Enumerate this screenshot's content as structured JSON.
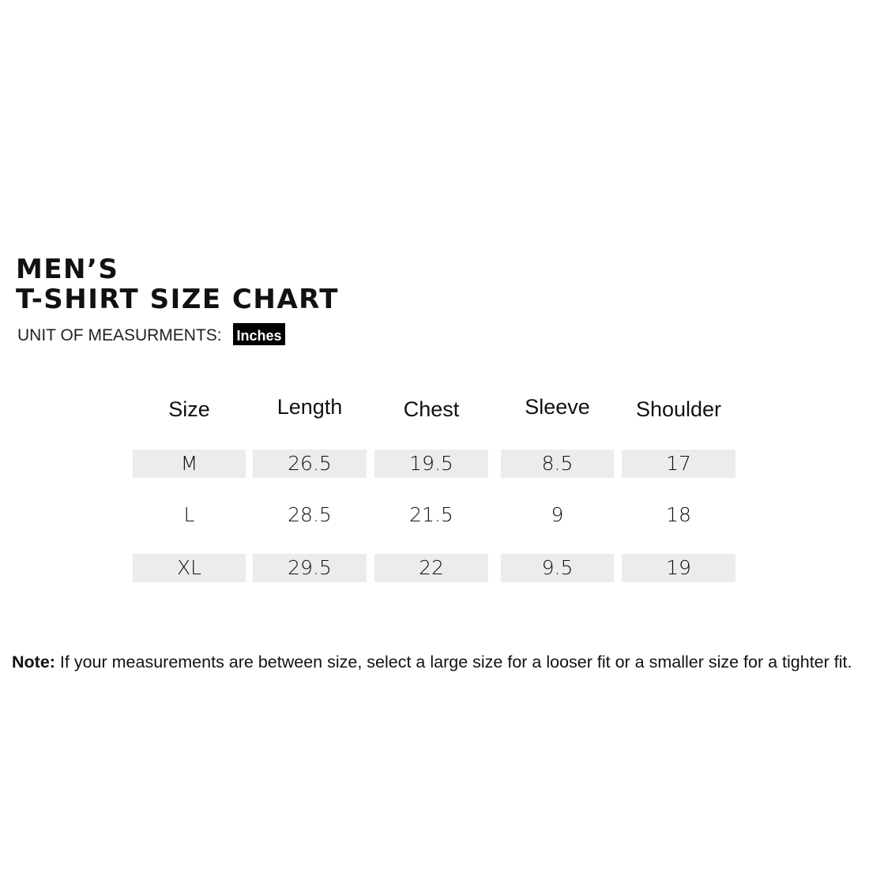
{
  "title": {
    "line1": "MEN’S",
    "line2": "T-SHIRT SIZE CHART"
  },
  "unit": {
    "label": "UNIT OF MEASURMENTS:",
    "value": "Inches"
  },
  "table": {
    "headers": [
      "Size",
      "Length",
      "Chest",
      "Sleeve",
      "Shoulder"
    ],
    "rows": [
      [
        "M",
        "26.5",
        "19.5",
        "8.5",
        "17"
      ],
      [
        "L",
        "28.5",
        "21.5",
        "9",
        "18"
      ],
      [
        "XL",
        "29.5",
        "22",
        "9.5",
        "19"
      ]
    ]
  },
  "note": {
    "label": "Note:",
    "text": " If your measurements are between size, select a large size for a looser fit or a smaller size for a tighter fit."
  },
  "colors": {
    "row_shade": "#ececec",
    "badge_bg": "#000000"
  }
}
